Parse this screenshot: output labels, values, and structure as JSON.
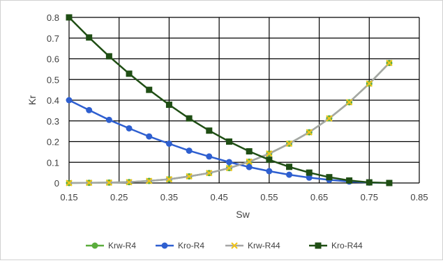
{
  "chart_data": {
    "type": "line",
    "title": "",
    "xlabel": "Sw",
    "ylabel": "Kr",
    "xlim": [
      0.15,
      0.85
    ],
    "ylim": [
      0,
      0.8
    ],
    "x_ticks": [
      "0.15",
      "0.25",
      "0.35",
      "0.45",
      "0.55",
      "0.65",
      "0.75",
      "0.85"
    ],
    "y_ticks": [
      "0",
      "0.1",
      "0.2",
      "0.3",
      "0.4",
      "0.5",
      "0.6",
      "0.7",
      "0.8"
    ],
    "grid": true,
    "legend_position": "bottom",
    "x": [
      0.15,
      0.19,
      0.23,
      0.27,
      0.31,
      0.35,
      0.39,
      0.43,
      0.47,
      0.51,
      0.55,
      0.59,
      0.63,
      0.67,
      0.71,
      0.75,
      0.79
    ],
    "series": [
      {
        "name": "Krw-R4",
        "color": "#5aad3c",
        "marker": "circle",
        "values": [
          0,
          0.001,
          0.002,
          0.004,
          0.01,
          0.018,
          0.032,
          0.048,
          0.072,
          0.103,
          0.142,
          0.19,
          0.245,
          0.312,
          0.39,
          0.48,
          0.58
        ]
      },
      {
        "name": "Kro-R4",
        "color": "#2e5fd0",
        "marker": "circle",
        "values": [
          0.4,
          0.352,
          0.305,
          0.264,
          0.225,
          0.19,
          0.156,
          0.128,
          0.101,
          0.077,
          0.057,
          0.04,
          0.026,
          0.015,
          0.007,
          0.002,
          0
        ]
      },
      {
        "name": "Krw-R44",
        "color": "#a6a6a6",
        "marker": "x",
        "values": [
          0,
          0.001,
          0.002,
          0.004,
          0.01,
          0.018,
          0.032,
          0.048,
          0.072,
          0.103,
          0.142,
          0.19,
          0.245,
          0.312,
          0.39,
          0.48,
          0.58
        ]
      },
      {
        "name": "Kro-R44",
        "color": "#1f4e14",
        "marker": "square",
        "values": [
          0.8,
          0.703,
          0.612,
          0.528,
          0.45,
          0.378,
          0.312,
          0.253,
          0.2,
          0.153,
          0.112,
          0.078,
          0.05,
          0.028,
          0.012,
          0.003,
          0
        ]
      }
    ]
  }
}
